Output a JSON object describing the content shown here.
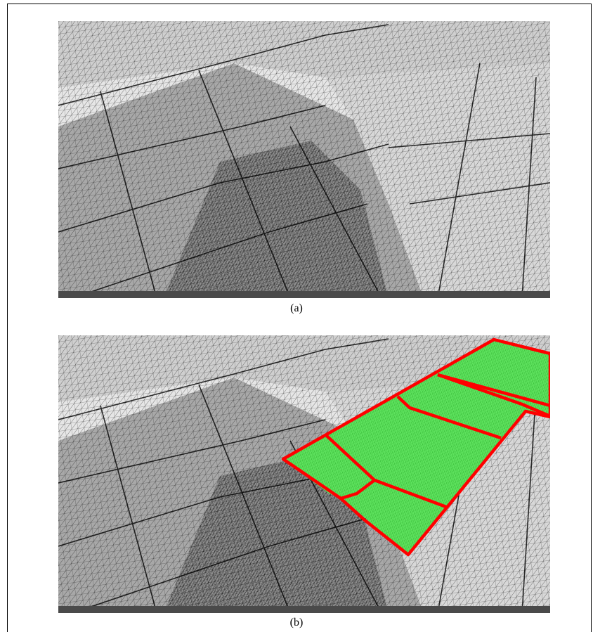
{
  "figure": {
    "panels": [
      {
        "id": "a",
        "caption": "(a)",
        "highlight": false
      },
      {
        "id": "b",
        "caption": "(b)",
        "highlight": true
      }
    ],
    "colors": {
      "mesh_line": "#000000",
      "surface_dark": "#9a9a9a",
      "surface_light": "#d4d4d4",
      "highlight_fill": "#55e055",
      "highlight_outline": "#ff0000",
      "base_bar": "#4a4a4a"
    }
  }
}
